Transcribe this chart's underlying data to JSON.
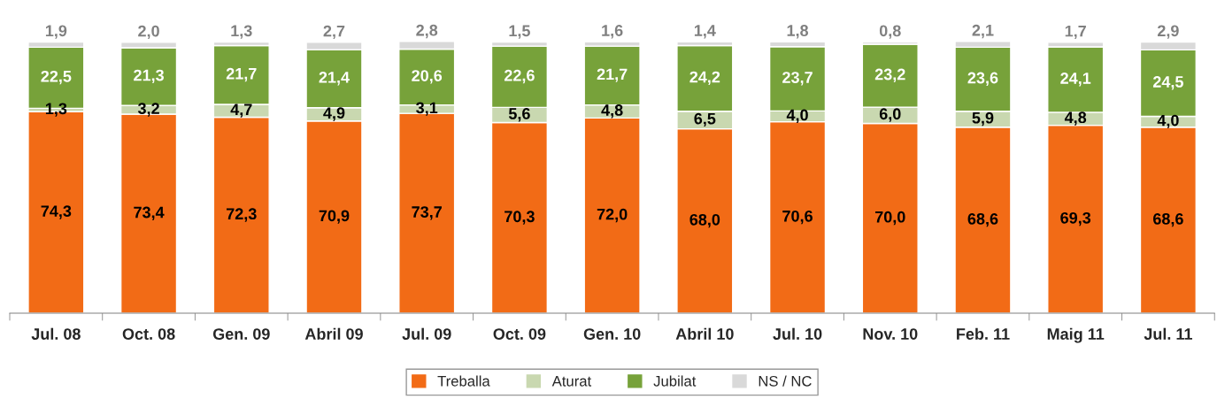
{
  "chart_data": {
    "type": "bar",
    "stacked": true,
    "legend": "bottom",
    "grid": false,
    "tick_labels": "x",
    "categories": [
      "Jul. 08",
      "Oct. 08",
      "Gen. 09",
      "Abril 09",
      "Jul. 09",
      "Oct. 09",
      "Gen. 10",
      "Abril 10",
      "Jul. 10",
      "Nov. 10",
      "Feb. 11",
      "Maig 11",
      "Jul. 11"
    ],
    "series": [
      {
        "name": "Treballa",
        "color": "#f26b16",
        "values": [
          74.3,
          73.4,
          72.3,
          70.9,
          73.7,
          70.3,
          72.0,
          68.0,
          70.6,
          70.0,
          68.6,
          69.3,
          68.6
        ],
        "value_labels": [
          "74,3",
          "73,4",
          "72,3",
          "70,9",
          "73,7",
          "70,3",
          "72,0",
          "68,0",
          "70,6",
          "70,0",
          "68,6",
          "69,3",
          "68,6"
        ]
      },
      {
        "name": "Aturat",
        "color": "#c9d8b0",
        "values": [
          1.3,
          3.2,
          4.7,
          4.9,
          3.1,
          5.6,
          4.8,
          6.5,
          4.0,
          6.0,
          5.9,
          4.8,
          4.0
        ],
        "value_labels": [
          "1,3",
          "3,2",
          "4,7",
          "4,9",
          "3,1",
          "5,6",
          "4,8",
          "6,5",
          "4,0",
          "6,0",
          "5,9",
          "4,8",
          "4,0"
        ]
      },
      {
        "name": "Jubilat",
        "color": "#77a23a",
        "values": [
          22.5,
          21.3,
          21.7,
          21.4,
          20.6,
          22.6,
          21.7,
          24.2,
          23.7,
          23.2,
          23.6,
          24.1,
          24.5
        ],
        "value_labels": [
          "22,5",
          "21,3",
          "21,7",
          "21,4",
          "20,6",
          "22,6",
          "21,7",
          "24,2",
          "23,7",
          "23,2",
          "23,6",
          "24,1",
          "24,5"
        ]
      },
      {
        "name": "NS / NC",
        "color": "#d9d9d9",
        "values": [
          1.9,
          2.0,
          1.3,
          2.7,
          2.8,
          1.5,
          1.6,
          1.4,
          1.8,
          0.8,
          2.1,
          1.7,
          2.9
        ],
        "value_labels": [
          "1,9",
          "2,0",
          "1,3",
          "2,7",
          "2,8",
          "1,5",
          "1,6",
          "1,4",
          "1,8",
          "0,8",
          "2,1",
          "1,7",
          "2,9"
        ]
      }
    ]
  }
}
